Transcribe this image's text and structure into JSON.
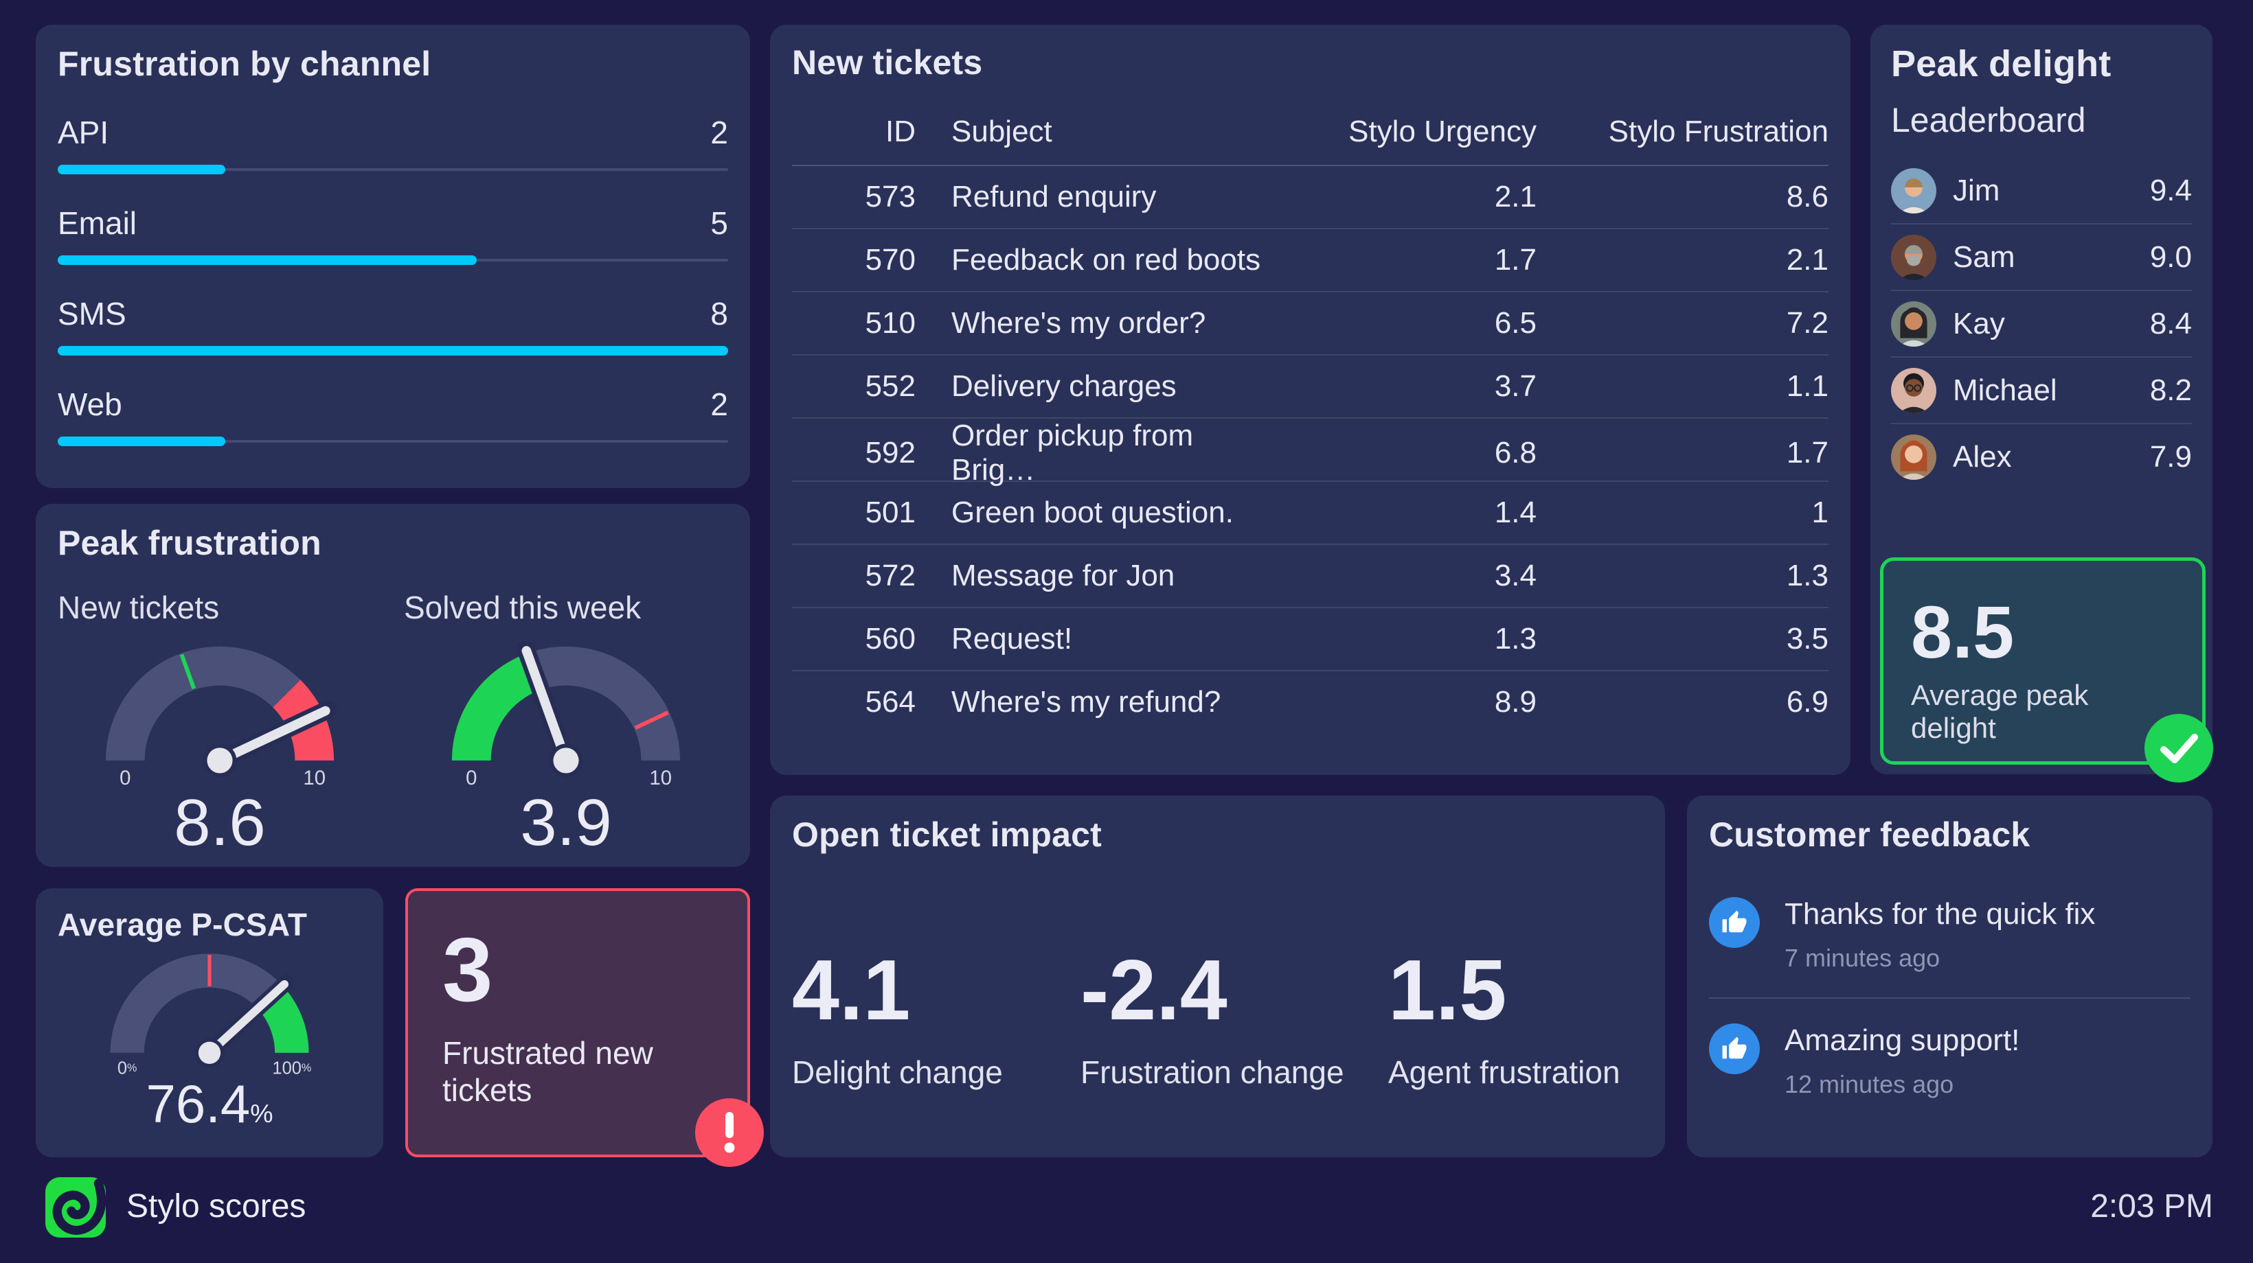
{
  "app": {
    "brand": "Stylo scores",
    "time": "2:03 PM"
  },
  "colors": {
    "accent_cyan": "#00C9FC",
    "positive_green": "#1ED455",
    "alert_red": "#FB4D61",
    "info_blue": "#318BE8",
    "logo_green": "#1FDC41"
  },
  "frustration_by_channel": {
    "title": "Frustration by channel"
  },
  "peak_frustration": {
    "title": "Peak frustration",
    "gauge_labels": [
      "New tickets",
      "Solved this week"
    ]
  },
  "average_pcsat": {
    "title": "Average P-CSAT"
  },
  "frustrated_card": {
    "value": "3",
    "label": "Frustrated new tickets"
  },
  "new_tickets": {
    "title": "New tickets",
    "columns": [
      "ID",
      "Subject",
      "Stylo Urgency",
      "Stylo Frustration"
    ],
    "rows": [
      [
        "573",
        "Refund enquiry",
        "2.1",
        "8.6"
      ],
      [
        "570",
        "Feedback on red boots",
        "1.7",
        "2.1"
      ],
      [
        "510",
        "Where's my order?",
        "6.5",
        "7.2"
      ],
      [
        "552",
        "Delivery charges",
        "3.7",
        "1.1"
      ],
      [
        "592",
        "Order pickup from Brig…",
        "6.8",
        "1.7"
      ],
      [
        "501",
        "Green boot question.",
        "1.4",
        "1"
      ],
      [
        "572",
        "Message for Jon",
        "3.4",
        "1.3"
      ],
      [
        "560",
        "Request!",
        "1.3",
        "3.5"
      ],
      [
        "564",
        "Where's my refund?",
        "8.9",
        "6.9"
      ]
    ]
  },
  "open_ticket_impact": {
    "title": "Open ticket impact",
    "stats": [
      {
        "value": "4.1",
        "label": "Delight change"
      },
      {
        "value": "-2.4",
        "label": "Frustration change"
      },
      {
        "value": "1.5",
        "label": "Agent frustration"
      }
    ]
  },
  "peak_delight": {
    "title": "Peak delight",
    "subtitle": "Leaderboard",
    "entries": [
      {
        "name": "Jim",
        "score": "9.4",
        "avatar": {
          "bg": "#7FA3C0",
          "skin": "#E7B58E",
          "hair": "#A9814F",
          "shirt": "#E8E4DC",
          "style": "short"
        }
      },
      {
        "name": "Sam",
        "score": "9.0",
        "avatar": {
          "bg": "#6B4638",
          "skin": "#D39A72",
          "hair": "#9A9A96",
          "shirt": "#1E2430",
          "style": "short",
          "beard": "#A8A8A4"
        }
      },
      {
        "name": "Kay",
        "score": "8.4",
        "avatar": {
          "bg": "#76837B",
          "skin": "#C98A60",
          "hair": "#26262C",
          "shirt": "#CFD8DA",
          "style": "long"
        }
      },
      {
        "name": "Michael",
        "score": "8.2",
        "avatar": {
          "bg": "#D8B3A6",
          "skin": "#7E4F33",
          "hair": "#1B1B20",
          "shirt": "#26262C",
          "style": "curly",
          "glasses": true
        }
      },
      {
        "name": "Alex",
        "score": "7.9",
        "avatar": {
          "bg": "#9C7C5C",
          "skin": "#EEC3A3",
          "hair": "#B04E28",
          "shirt": "#D9C9B8",
          "style": "long"
        }
      }
    ],
    "average": {
      "value": "8.5",
      "label": "Average peak delight"
    }
  },
  "customer_feedback": {
    "title": "Customer feedback",
    "items": [
      {
        "text": "Thanks for the quick fix",
        "time": "7 minutes ago"
      },
      {
        "text": "Amazing support!",
        "time": "12 minutes ago"
      }
    ]
  },
  "chart_data": [
    {
      "type": "bar",
      "title": "Frustration by channel",
      "orientation": "horizontal",
      "categories": [
        "API",
        "Email",
        "SMS",
        "Web"
      ],
      "values": [
        2,
        5,
        8,
        2
      ],
      "xlim": [
        0,
        8
      ],
      "bar_color": "#00C9FC",
      "track_color": "#454C74"
    },
    {
      "type": "gauge",
      "title": "New tickets",
      "min": 0,
      "max": 10,
      "value": 8.6,
      "value_display": "8.6",
      "value_suffix": "",
      "min_label": "0",
      "max_label": "10",
      "track_color": "#4A5078",
      "zones": [
        {
          "from": 7.5,
          "to": 10,
          "color": "#FB4D61"
        }
      ],
      "ticks": [
        {
          "at": 3.9,
          "color": "#1ED455"
        }
      ]
    },
    {
      "type": "gauge",
      "title": "Solved this week",
      "min": 0,
      "max": 10,
      "value": 3.9,
      "value_display": "3.9",
      "value_suffix": "",
      "min_label": "0",
      "max_label": "10",
      "track_color": "#4A5078",
      "fill_color": "#1ED455",
      "ticks": [
        {
          "at": 8.6,
          "color": "#FB4D61"
        }
      ]
    },
    {
      "type": "gauge",
      "title": "Average P-CSAT",
      "min": 0,
      "max": 100,
      "value": 76.4,
      "value_display": "76.4",
      "value_suffix": "%",
      "min_label": "0%",
      "max_label": "100%",
      "track_color": "#4A5078",
      "zones": [
        {
          "from": 75,
          "to": 100,
          "color": "#1ED455"
        }
      ],
      "ticks": [
        {
          "at": 50,
          "color": "#FB4D61"
        }
      ]
    }
  ]
}
